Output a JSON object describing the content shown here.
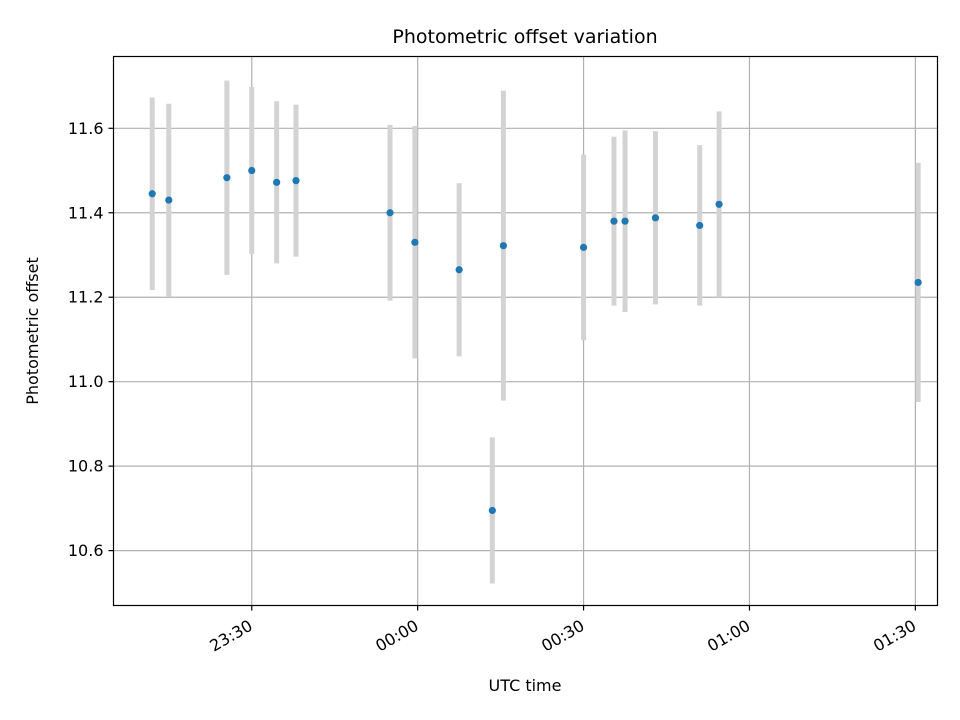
{
  "chart_data": {
    "type": "scatter",
    "title": "Photometric offset variation",
    "xlabel": "UTC time",
    "ylabel": "Photometric offset",
    "x_ticks": [
      "23:30",
      "00:00",
      "00:30",
      "01:00",
      "01:30"
    ],
    "y_ticks": [
      "10.6",
      "10.8",
      "11.0",
      "11.2",
      "11.4",
      "11.6"
    ],
    "xlim": [
      "23:05",
      "01:34"
    ],
    "ylim": [
      10.47,
      11.77
    ],
    "grid": true,
    "colors": {
      "point": "#1f77b4",
      "errorbar": "#d3d3d3",
      "grid": "#b0b0b0"
    },
    "points": [
      {
        "x": "23:12:00",
        "y": 11.445,
        "err": 0.228
      },
      {
        "x": "23:15:00",
        "y": 11.43,
        "err": 0.228
      },
      {
        "x": "23:25:30",
        "y": 11.483,
        "err": 0.23
      },
      {
        "x": "23:30:00",
        "y": 11.5,
        "err": 0.198
      },
      {
        "x": "23:34:30",
        "y": 11.472,
        "err": 0.192
      },
      {
        "x": "23:38:00",
        "y": 11.476,
        "err": 0.18
      },
      {
        "x": "23:55:00",
        "y": 11.4,
        "err": 0.208
      },
      {
        "x": "23:59:30",
        "y": 11.33,
        "err": 0.275
      },
      {
        "x": "00:07:30",
        "y": 11.265,
        "err": 0.205
      },
      {
        "x": "00:13:30",
        "y": 10.695,
        "err": 0.173
      },
      {
        "x": "00:15:30",
        "y": 11.322,
        "err": 0.367
      },
      {
        "x": "00:30:00",
        "y": 11.318,
        "err": 0.22
      },
      {
        "x": "00:35:30",
        "y": 11.38,
        "err": 0.2
      },
      {
        "x": "00:37:30",
        "y": 11.38,
        "err": 0.215
      },
      {
        "x": "00:43:00",
        "y": 11.388,
        "err": 0.205
      },
      {
        "x": "00:51:00",
        "y": 11.37,
        "err": 0.19
      },
      {
        "x": "00:54:30",
        "y": 11.42,
        "err": 0.22
      },
      {
        "x": "01:30:30",
        "y": 11.235,
        "err": 0.283
      }
    ]
  }
}
